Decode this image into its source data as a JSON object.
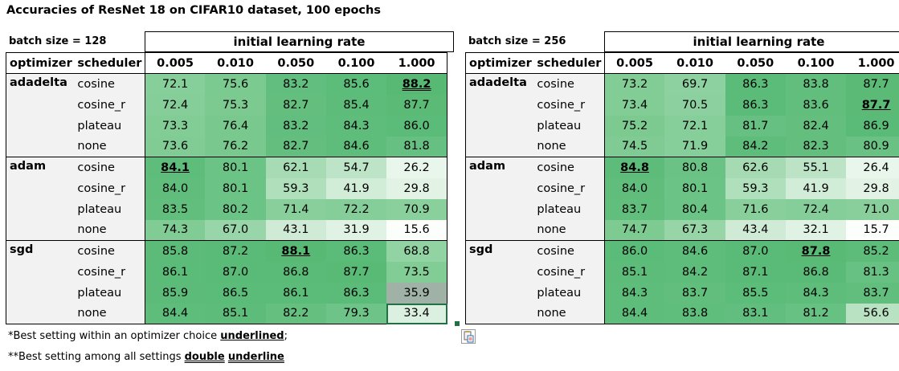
{
  "title": "Accuracies of  ResNet 18 on CIFAR10 dataset, 100 epochs",
  "header": {
    "group_label": "initial learning rate",
    "optimizer_label": "optimizer",
    "scheduler_label": "scheduler",
    "learning_rates": [
      "0.005",
      "0.010",
      "0.050",
      "0.100",
      "1.000"
    ]
  },
  "tables": [
    {
      "batch_label": "batch size = 128",
      "groups": [
        {
          "optimizer": "adadelta",
          "rows": [
            {
              "scheduler": "cosine",
              "values": [
                "72.1",
                "75.6",
                "83.2",
                "85.6",
                "88.2"
              ],
              "colors": [
                "#86cf9a",
                "#7bca8f",
                "#62be7e",
                "#5cbc7a",
                "#58b975"
              ]
            },
            {
              "scheduler": "cosine_r",
              "values": [
                "72.4",
                "75.3",
                "82.7",
                "85.4",
                "87.7"
              ],
              "colors": [
                "#85ce99",
                "#7cca90",
                "#64bf7f",
                "#5dbc7a",
                "#5aba76"
              ]
            },
            {
              "scheduler": "plateau",
              "values": [
                "73.3",
                "76.4",
                "83.2",
                "84.3",
                "86.0"
              ],
              "colors": [
                "#82cd96",
                "#79c98e",
                "#62be7e",
                "#5fbd7c",
                "#5bbb78"
              ]
            },
            {
              "scheduler": "none",
              "values": [
                "73.6",
                "76.2",
                "82.7",
                "84.6",
                "81.8"
              ],
              "colors": [
                "#81cc95",
                "#79c98e",
                "#64bf7f",
                "#5ebd7b",
                "#66c081"
              ]
            }
          ]
        },
        {
          "optimizer": "adam",
          "rows": [
            {
              "scheduler": "cosine",
              "values": [
                "84.1",
                "80.1",
                "62.1",
                "54.7",
                "26.2"
              ],
              "colors": [
                "#5fbd7c",
                "#6cc386",
                "#a7dbb4",
                "#bde4c6",
                "#e9f6ec"
              ]
            },
            {
              "scheduler": "cosine_r",
              "values": [
                "84.0",
                "80.1",
                "59.3",
                "41.9",
                "29.8"
              ],
              "colors": [
                "#60bd7c",
                "#6cc386",
                "#afdfbb",
                "#d1ecd7",
                "#e2f3e6"
              ]
            },
            {
              "scheduler": "plateau",
              "values": [
                "83.5",
                "80.2",
                "71.4",
                "72.2",
                "70.9"
              ],
              "colors": [
                "#61be7d",
                "#6cc386",
                "#88cf9b",
                "#86ce99",
                "#8ad09c"
              ]
            },
            {
              "scheduler": "none",
              "values": [
                "74.3",
                "67.0",
                "43.1",
                "31.9",
                "15.6"
              ],
              "colors": [
                "#80cc94",
                "#98d5a8",
                "#cfebd5",
                "#e0f2e4",
                "#fcfefc"
              ]
            }
          ]
        },
        {
          "optimizer": "sgd",
          "rows": [
            {
              "scheduler": "cosine",
              "values": [
                "85.8",
                "87.2",
                "88.1",
                "86.3",
                "68.8"
              ],
              "colors": [
                "#5cbb79",
                "#5aba77",
                "#58b975",
                "#5bbb78",
                "#91d3a3"
              ]
            },
            {
              "scheduler": "cosine_r",
              "values": [
                "86.1",
                "87.0",
                "86.8",
                "87.7",
                "73.5"
              ],
              "colors": [
                "#5bbb78",
                "#5aba77",
                "#5aba77",
                "#59ba76",
                "#82cd96"
              ]
            },
            {
              "scheduler": "plateau",
              "values": [
                "85.9",
                "86.5",
                "86.1",
                "86.3",
                "35.9"
              ],
              "colors": [
                "#5cbb79",
                "#5bbb78",
                "#5bbb78",
                "#5bbb78",
                "#9fb2a5"
              ]
            },
            {
              "scheduler": "none",
              "values": [
                "84.4",
                "85.1",
                "82.2",
                "79.3",
                "33.4"
              ],
              "colors": [
                "#5ebd7b",
                "#5dbc7a",
                "#65c080",
                "#6ec488",
                "#dcf0e1"
              ]
            }
          ]
        }
      ]
    },
    {
      "batch_label": "batch size = 256",
      "groups": [
        {
          "optimizer": "adadelta",
          "rows": [
            {
              "scheduler": "cosine",
              "values": [
                "73.2",
                "69.7",
                "86.3",
                "83.8",
                "87.7"
              ],
              "colors": [
                "#82cd96",
                "#8ed1a0",
                "#5bbb78",
                "#61be7d",
                "#5aba76"
              ]
            },
            {
              "scheduler": "cosine_r",
              "values": [
                "73.4",
                "70.5",
                "86.3",
                "83.6",
                "87.7"
              ],
              "colors": [
                "#82cd96",
                "#8bd09e",
                "#5bbb78",
                "#61be7d",
                "#5aba76"
              ]
            },
            {
              "scheduler": "plateau",
              "values": [
                "75.2",
                "72.1",
                "81.7",
                "82.4",
                "86.9"
              ],
              "colors": [
                "#7cca90",
                "#86cf9a",
                "#66c081",
                "#64bf7f",
                "#5aba77"
              ]
            },
            {
              "scheduler": "none",
              "values": [
                "74.5",
                "71.9",
                "84.2",
                "82.3",
                "80.9"
              ],
              "colors": [
                "#7fcb93",
                "#87cf9a",
                "#5fbd7c",
                "#64bf7f",
                "#69c283"
              ]
            }
          ]
        },
        {
          "optimizer": "adam",
          "rows": [
            {
              "scheduler": "cosine",
              "values": [
                "84.8",
                "80.8",
                "62.6",
                "55.1",
                "26.4"
              ],
              "colors": [
                "#5dbc7a",
                "#6ac284",
                "#a5dab2",
                "#bce3c5",
                "#e8f6ec"
              ]
            },
            {
              "scheduler": "cosine_r",
              "values": [
                "84.0",
                "80.1",
                "59.3",
                "41.9",
                "29.8"
              ],
              "colors": [
                "#60bd7c",
                "#6cc386",
                "#afdfbb",
                "#d1ecd7",
                "#e2f3e6"
              ]
            },
            {
              "scheduler": "plateau",
              "values": [
                "83.7",
                "80.4",
                "71.6",
                "72.4",
                "71.0"
              ],
              "colors": [
                "#61be7d",
                "#6bc385",
                "#88cf9b",
                "#85ce99",
                "#89cf9c"
              ]
            },
            {
              "scheduler": "none",
              "values": [
                "74.7",
                "67.3",
                "43.4",
                "32.1",
                "15.7"
              ],
              "colors": [
                "#7ecb92",
                "#97d5a7",
                "#cfebd5",
                "#e0f2e4",
                "#fcfefc"
              ]
            }
          ]
        },
        {
          "optimizer": "sgd",
          "rows": [
            {
              "scheduler": "cosine",
              "values": [
                "86.0",
                "84.6",
                "87.0",
                "87.8",
                "85.2"
              ],
              "colors": [
                "#5bbb78",
                "#5ebd7b",
                "#5aba77",
                "#59ba76",
                "#5dbc7a"
              ]
            },
            {
              "scheduler": "cosine_r",
              "values": [
                "85.1",
                "84.2",
                "87.1",
                "86.8",
                "81.3"
              ],
              "colors": [
                "#5dbc7a",
                "#5fbd7c",
                "#5aba77",
                "#5aba77",
                "#67c182"
              ]
            },
            {
              "scheduler": "plateau",
              "values": [
                "84.3",
                "83.7",
                "85.5",
                "84.3",
                "83.7"
              ],
              "colors": [
                "#5fbd7c",
                "#61be7d",
                "#5cbc79",
                "#5fbd7c",
                "#61be7d"
              ]
            },
            {
              "scheduler": "none",
              "values": [
                "84.4",
                "83.8",
                "83.1",
                "81.2",
                "56.6"
              ],
              "colors": [
                "#5ebd7b",
                "#60be7c",
                "#62be7e",
                "#67c182",
                "#b8e2c2"
              ]
            }
          ]
        }
      ]
    }
  ],
  "footnotes": {
    "note1_prefix": "*Best setting within an optimizer choice ",
    "note1_emph": "underlined",
    "note1_suffix": ";",
    "note2_prefix": "**Best setting among all settings ",
    "note2_emph1": "double",
    "note2_space": " ",
    "note2_emph2": "underline"
  }
}
